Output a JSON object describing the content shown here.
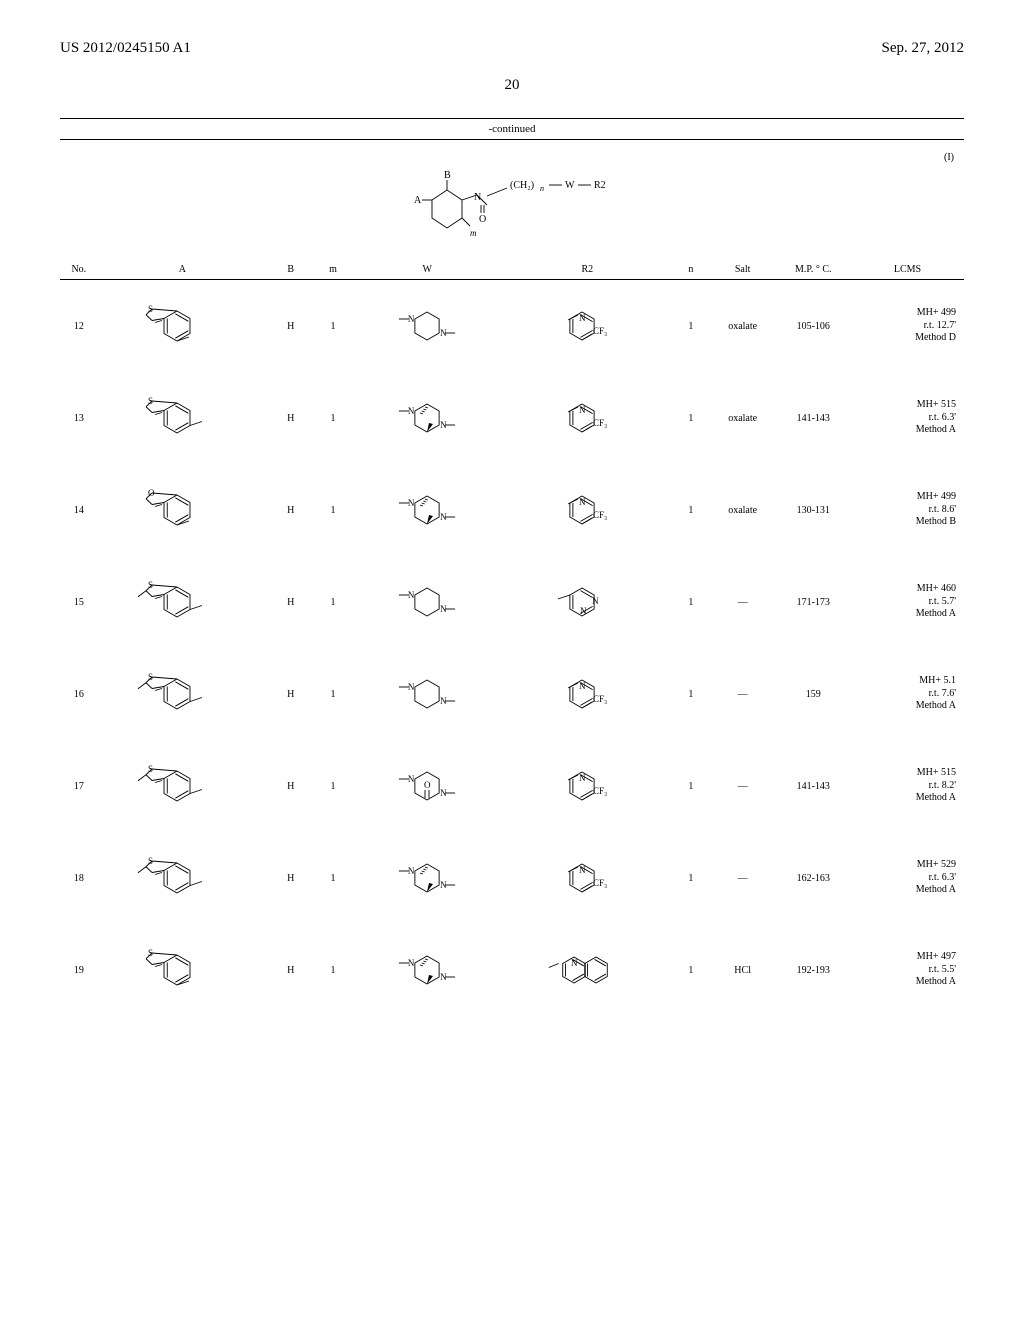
{
  "header": {
    "left": "US 2012/0245150 A1",
    "right": "Sep. 27, 2012"
  },
  "page_number": "20",
  "table": {
    "continued_label": "-continued",
    "roman_label": "(I)",
    "columns": [
      "No.",
      "A",
      "B",
      "m",
      "W",
      "R2",
      "n",
      "Salt",
      "M.P. ° C.",
      "LCMS"
    ],
    "struct_labels": {
      "A": "A",
      "B": "B",
      "ch2n": "(CH₂)ₙ",
      "W": "W",
      "R2": "R2",
      "N": "N",
      "O": "O",
      "m": "m"
    },
    "rows": [
      {
        "no": "12",
        "B": "H",
        "m": "1",
        "n": "1",
        "salt": "oxalate",
        "mp": "105-106",
        "lcms": [
          "MH+ 499",
          "r.t. 12.7'",
          "Method D"
        ],
        "A_type": "benzothiophene_4",
        "W_type": "piperazine",
        "R2_type": "cf3pyridine"
      },
      {
        "no": "13",
        "B": "H",
        "m": "1",
        "n": "1",
        "salt": "oxalate",
        "mp": "141-143",
        "lcms": [
          "MH+ 515",
          "r.t. 6.3'",
          "Method A"
        ],
        "A_type": "benzothiophene_5",
        "W_type": "dimethylpiperazine",
        "R2_type": "cf3pyridine"
      },
      {
        "no": "14",
        "B": "H",
        "m": "1",
        "n": "1",
        "salt": "oxalate",
        "mp": "130-131",
        "lcms": [
          "MH+ 499",
          "r.t. 8.6'",
          "Method B"
        ],
        "A_type": "benzofuran_4",
        "W_type": "dimethylpiperazine",
        "R2_type": "cf3pyridine"
      },
      {
        "no": "15",
        "B": "H",
        "m": "1",
        "n": "1",
        "salt": "—",
        "mp": "171-173",
        "lcms": [
          "MH+ 460",
          "r.t. 5.7'",
          "Method A"
        ],
        "A_type": "methylbenzothiophene_5",
        "W_type": "piperazine",
        "R2_type": "pyrimidine"
      },
      {
        "no": "16",
        "B": "H",
        "m": "1",
        "n": "1",
        "salt": "—",
        "mp": "159",
        "lcms": [
          "MH+ 5.1",
          "r.t. 7.6'",
          "Method A"
        ],
        "A_type": "methylbenzothiophene_5",
        "W_type": "piperazine",
        "R2_type": "cf3pyridine"
      },
      {
        "no": "17",
        "B": "H",
        "m": "1",
        "n": "1",
        "salt": "—",
        "mp": "141-143",
        "lcms": [
          "MH+ 515",
          "r.t. 8.2'",
          "Method A"
        ],
        "A_type": "methylbenzothiophene_5",
        "W_type": "oxopiperazine",
        "R2_type": "cf3pyridine"
      },
      {
        "no": "18",
        "B": "H",
        "m": "1",
        "n": "1",
        "salt": "—",
        "mp": "162-163",
        "lcms": [
          "MH+ 529",
          "r.t. 6.3'",
          "Method A"
        ],
        "A_type": "methylbenzothiophene_5",
        "W_type": "dimethylpiperazine2",
        "R2_type": "cf3pyridine"
      },
      {
        "no": "19",
        "B": "H",
        "m": "1",
        "n": "1",
        "salt": "HCl",
        "mp": "192-193",
        "lcms": [
          "MH+ 497",
          "r.t. 5.5'",
          "Method A"
        ],
        "A_type": "benzothiophene_4",
        "W_type": "dimethylpiperazine2",
        "R2_type": "quinoline"
      }
    ]
  },
  "style": {
    "stroke": "#000000",
    "stroke_width": 0.9,
    "font_chem": "10px Times New Roman"
  }
}
